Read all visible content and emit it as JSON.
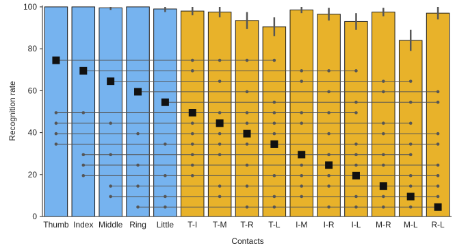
{
  "chart_data": {
    "type": "bar",
    "xlabel": "Contacts",
    "ylabel": "Recognition rate",
    "ylim": [
      0,
      100
    ],
    "yticks": [
      0,
      20,
      40,
      60,
      80,
      100
    ],
    "categories": [
      "Thumb",
      "Index",
      "Middle",
      "Ring",
      "Little",
      "T-I",
      "T-M",
      "T-R",
      "T-L",
      "I-M",
      "I-R",
      "I-L",
      "M-R",
      "M-L",
      "R-L"
    ],
    "bar_colors": [
      "#76b3ef",
      "#76b3ef",
      "#76b3ef",
      "#76b3ef",
      "#76b3ef",
      "#e8b22a",
      "#e8b22a",
      "#e8b22a",
      "#e8b22a",
      "#e8b22a",
      "#e8b22a",
      "#e8b22a",
      "#e8b22a",
      "#e8b22a",
      "#e8b22a"
    ],
    "values": [
      100,
      100,
      99.5,
      100,
      99,
      98,
      97.5,
      93.5,
      90.5,
      98.5,
      96.5,
      93,
      97.5,
      84,
      97
    ],
    "error": [
      0,
      0,
      1,
      0,
      1.5,
      2,
      2.5,
      4,
      4.5,
      1.5,
      3,
      4,
      2,
      5,
      3
    ],
    "marker_levels": [
      74.5,
      69.5,
      64.5,
      59.5,
      54.5,
      49.5,
      44.5,
      39.5,
      34.5,
      29.5,
      24.5,
      19.5,
      14.5,
      9.5,
      4.5
    ],
    "line_color": "#555555",
    "marker_color": "#111111"
  }
}
